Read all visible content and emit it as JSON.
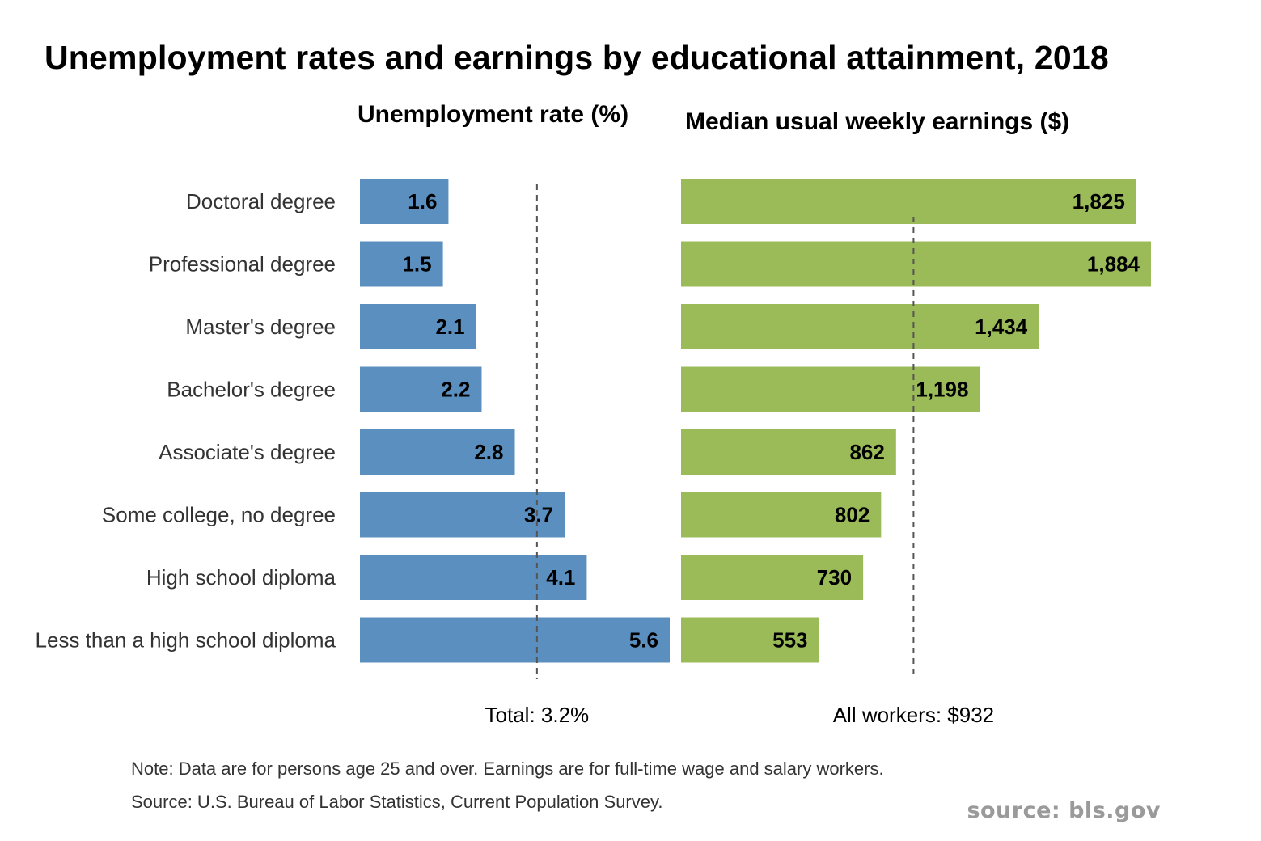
{
  "chart_data": {
    "title": "Unemployment rates and earnings by educational attainment, 2018",
    "categories": [
      "Doctoral degree",
      "Professional degree",
      "Master's degree",
      "Bachelor's degree",
      "Associate's degree",
      "Some college, no degree",
      "High school diploma",
      "Less than a high school diploma"
    ],
    "panels": [
      {
        "type": "bar",
        "orientation": "horizontal",
        "subtitle": "Unemployment rate (%)",
        "values": [
          1.6,
          1.5,
          2.1,
          2.2,
          2.8,
          3.7,
          4.1,
          5.6
        ],
        "value_labels": [
          "1.6",
          "1.5",
          "2.1",
          "2.2",
          "2.8",
          "3.7",
          "4.1",
          "5.6"
        ],
        "xlim": [
          0,
          5.6
        ],
        "color": "#5b8fbf",
        "reference_value": 3.2,
        "reference_label": "Total: 3.2%"
      },
      {
        "type": "bar",
        "orientation": "horizontal",
        "subtitle": "Median usual weekly earnings ($)",
        "values": [
          1825,
          1884,
          1434,
          1198,
          862,
          802,
          730,
          553
        ],
        "value_labels": [
          "1,825",
          "1,884",
          "1,434",
          "1,198",
          "862",
          "802",
          "730",
          "553"
        ],
        "xlim": [
          0,
          1884
        ],
        "color": "#9bbb59",
        "reference_value": 932,
        "reference_label": "All workers: $932"
      }
    ],
    "grid": false,
    "legend": "none"
  },
  "notes": {
    "note": "Note: Data are for persons age 25 and over. Earnings are for full-time wage and salary workers.",
    "source": "Source: U.S. Bureau of Labor Statistics, Current Population Survey."
  },
  "watermark": "source: bls.gov"
}
